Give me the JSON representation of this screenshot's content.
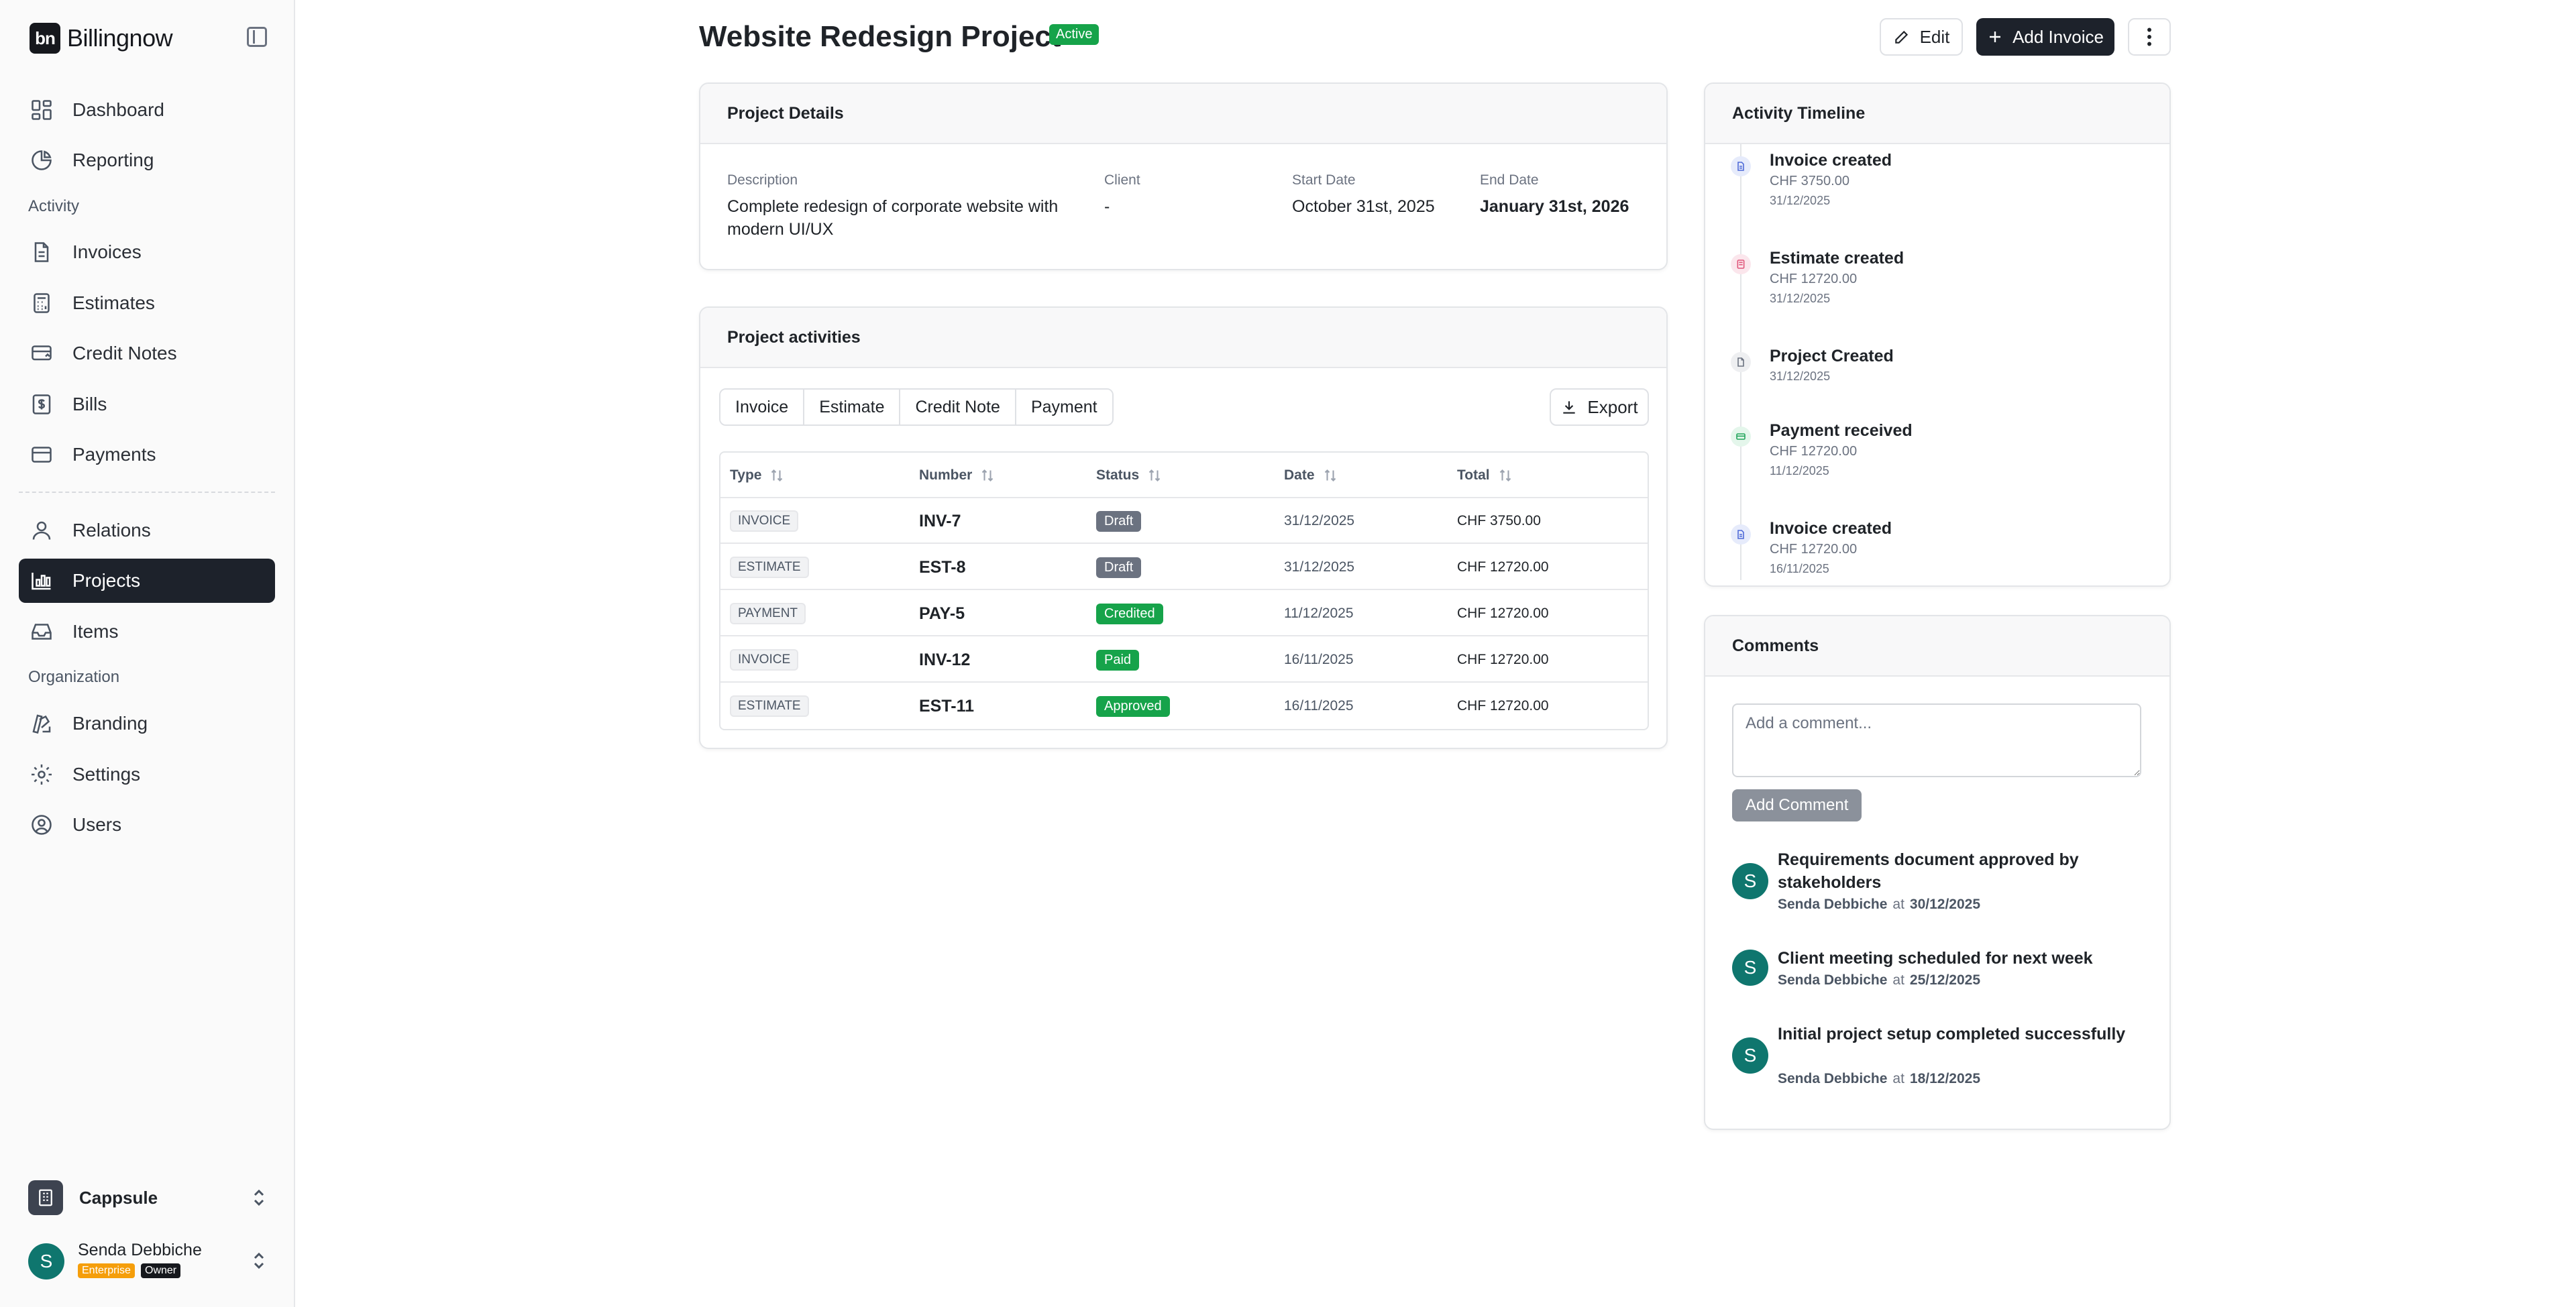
{
  "app": {
    "name": "Billingnow",
    "logo_text": "bn"
  },
  "sidebar": {
    "nav": [
      {
        "label": "Dashboard",
        "icon": "dashboard-icon"
      },
      {
        "label": "Reporting",
        "icon": "pie-chart-icon"
      }
    ],
    "section_activity": "Activity",
    "activity": [
      {
        "label": "Invoices",
        "icon": "file-icon"
      },
      {
        "label": "Estimates",
        "icon": "calculator-icon"
      },
      {
        "label": "Credit Notes",
        "icon": "credit-note-icon"
      },
      {
        "label": "Bills",
        "icon": "bill-icon"
      },
      {
        "label": "Payments",
        "icon": "credit-card-icon"
      }
    ],
    "more": [
      {
        "label": "Relations",
        "icon": "user-icon"
      },
      {
        "label": "Projects",
        "icon": "projects-icon",
        "active": true
      },
      {
        "label": "Items",
        "icon": "inbox-icon"
      }
    ],
    "section_org": "Organization",
    "org": [
      {
        "label": "Branding",
        "icon": "palette-icon"
      },
      {
        "label": "Settings",
        "icon": "gear-icon"
      },
      {
        "label": "Users",
        "icon": "user-circle-icon"
      }
    ],
    "organization_name": "Cappsule",
    "user": {
      "name": "Senda Debbiche",
      "initial": "S",
      "plan_badge": "Enterprise",
      "role_badge": "Owner"
    }
  },
  "header": {
    "title": "Website Redesign Project",
    "status": "Active",
    "edit_label": "Edit",
    "add_invoice_label": "Add Invoice"
  },
  "project_details": {
    "title": "Project Details",
    "description_label": "Description",
    "description": "Complete redesign of corporate website with modern UI/UX",
    "client_label": "Client",
    "client": "-",
    "start_label": "Start Date",
    "start": "October 31st, 2025",
    "end_label": "End Date",
    "end": "January 31st, 2026"
  },
  "activities": {
    "title": "Project activities",
    "tabs": [
      "Invoice",
      "Estimate",
      "Credit Note",
      "Payment"
    ],
    "export_label": "Export",
    "columns": [
      "Type",
      "Number",
      "Status",
      "Date",
      "Total"
    ],
    "rows": [
      {
        "type": "INVOICE",
        "number": "INV-7",
        "status": "Draft",
        "date": "31/12/2025",
        "total": "CHF 3750.00"
      },
      {
        "type": "ESTIMATE",
        "number": "EST-8",
        "status": "Draft",
        "date": "31/12/2025",
        "total": "CHF 12720.00"
      },
      {
        "type": "PAYMENT",
        "number": "PAY-5",
        "status": "Credited",
        "date": "11/12/2025",
        "total": "CHF 12720.00"
      },
      {
        "type": "INVOICE",
        "number": "INV-12",
        "status": "Paid",
        "date": "16/11/2025",
        "total": "CHF 12720.00"
      },
      {
        "type": "ESTIMATE",
        "number": "EST-11",
        "status": "Approved",
        "date": "16/11/2025",
        "total": "CHF 12720.00"
      }
    ],
    "status_colors": {
      "Draft": "#6b7280",
      "Credited": "#16a34a",
      "Paid": "#16a34a",
      "Approved": "#16a34a"
    }
  },
  "timeline": {
    "title": "Activity Timeline",
    "items": [
      {
        "title": "Invoice created",
        "amount": "CHF 3750.00",
        "date": "31/12/2025",
        "icon": "invoice-icon",
        "color": "#4f6bd8"
      },
      {
        "title": "Estimate created",
        "amount": "CHF 12720.00",
        "date": "31/12/2025",
        "icon": "estimate-icon",
        "color": "#e0577b"
      },
      {
        "title": "Project Created",
        "amount": "",
        "date": "31/12/2025",
        "icon": "project-icon",
        "color": "#6b7280"
      },
      {
        "title": "Payment received",
        "amount": "CHF 12720.00",
        "date": "11/12/2025",
        "icon": "payment-icon",
        "color": "#22a55b"
      },
      {
        "title": "Invoice created",
        "amount": "CHF 12720.00",
        "date": "16/11/2025",
        "icon": "invoice-icon",
        "color": "#4f6bd8"
      }
    ]
  },
  "comments": {
    "title": "Comments",
    "placeholder": "Add a comment...",
    "add_label": "Add Comment",
    "at_label": "at",
    "items": [
      {
        "text": "Requirements document approved by stakeholders",
        "author": "Senda Debbiche",
        "date": "30/12/2025",
        "initial": "S"
      },
      {
        "text": "Client meeting scheduled for next week",
        "author": "Senda Debbiche",
        "date": "25/12/2025",
        "initial": "S"
      },
      {
        "text": "Initial project setup completed successfully",
        "author": "Senda Debbiche",
        "date": "18/12/2025",
        "initial": "S"
      }
    ]
  }
}
